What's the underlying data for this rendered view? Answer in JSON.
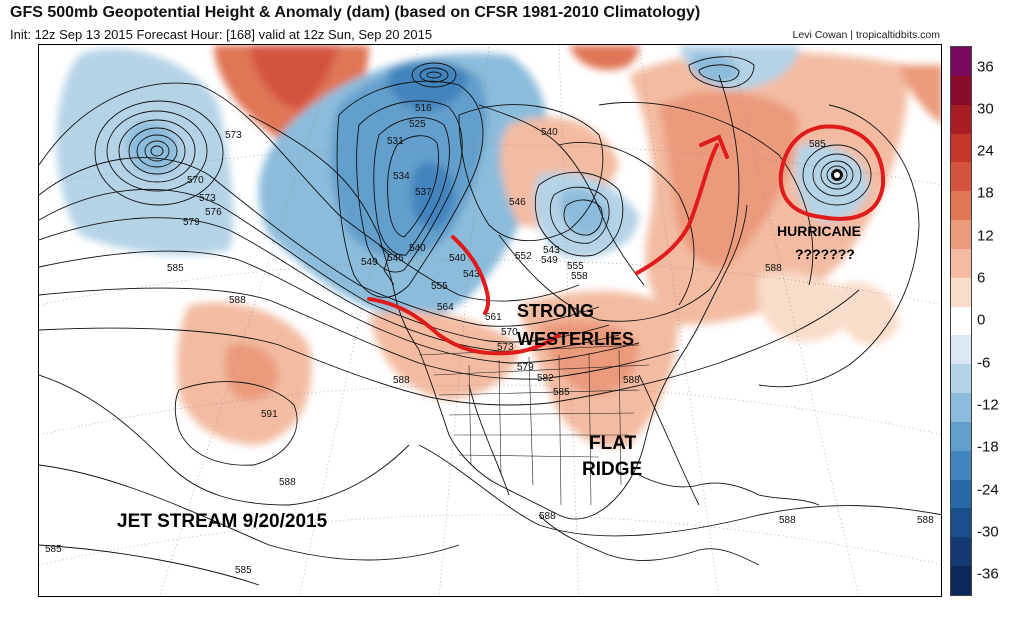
{
  "header": {
    "title": "GFS 500mb Geopotential Height & Anomaly (dam) (based on CFSR 1981-2010 Climatology)",
    "subtitle": "Init: 12z Sep 13 2015   Forecast Hour: [168]   valid at 12z Sun, Sep 20 2015",
    "credit": "Levi Cowan | tropicaltidbits.com"
  },
  "annotations": {
    "strong": "STRONG",
    "westerlies": "WESTERLIES",
    "hurricane": "HURRICANE",
    "question": "???????",
    "flat": "FLAT",
    "ridge": "RIDGE",
    "jet_stream": "JET STREAM 9/20/2015"
  },
  "contour_labels": [
    "573",
    "570",
    "573",
    "576",
    "579",
    "585",
    "588",
    "591",
    "588",
    "585",
    "585",
    "516",
    "525",
    "531",
    "534",
    "537",
    "546",
    "540",
    "549",
    "546",
    "540",
    "543",
    "555",
    "564",
    "561",
    "570",
    "573",
    "552",
    "543",
    "549",
    "555",
    "558",
    "579",
    "582",
    "585",
    "588",
    "540",
    "585",
    "588",
    "588",
    "588",
    "588",
    "588"
  ],
  "colorbar": {
    "ticks": [
      "36",
      "30",
      "24",
      "18",
      "12",
      "6",
      "0",
      "-6",
      "-12",
      "-18",
      "-24",
      "-30",
      "-36"
    ],
    "colors": [
      "#7a0a5e",
      "#8a0c2a",
      "#a81e24",
      "#c5352c",
      "#d4533e",
      "#e07656",
      "#eb9a7c",
      "#f3bca2",
      "#f9dcc9",
      "#ffffff",
      "#d9e8f2",
      "#b5d3e7",
      "#8cbcdb",
      "#639fcc",
      "#4284bd",
      "#2868a6",
      "#1b4f8c",
      "#153a72",
      "#0f285a"
    ]
  },
  "accent": {
    "annotation_red": "#e01b1b"
  }
}
